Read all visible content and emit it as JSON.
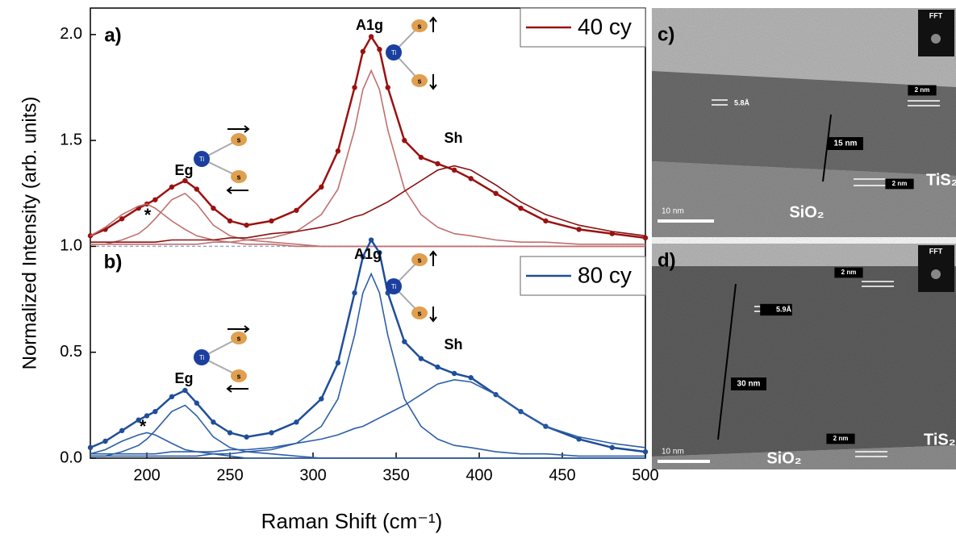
{
  "chart_data": {
    "type": "line",
    "x_label": "Raman Shift (cm⁻¹)",
    "y_label": "Normalized Intensity (arb. units)",
    "xlim": [
      166,
      500
    ],
    "xticks": [
      200,
      250,
      300,
      350,
      400,
      450,
      500
    ],
    "ylim": [
      0,
      2.125
    ],
    "yticks": [
      {
        "value": 0,
        "label": "0.0"
      },
      0.5,
      {
        "value": 1,
        "label": "1.0"
      },
      1.5,
      {
        "value": 2,
        "label": "2.0"
      }
    ],
    "baseline": 1,
    "x": [
      166,
      175,
      185,
      195,
      200,
      205,
      215,
      223,
      230,
      240,
      250,
      260,
      275,
      290,
      305,
      315,
      325,
      330,
      335,
      340,
      345,
      355,
      365,
      375,
      385,
      395,
      410,
      425,
      440,
      460,
      480,
      500
    ],
    "series": [
      {
        "style": "dots",
        "color": "#9b1111",
        "values": [
          1.05,
          1.08,
          1.13,
          1.18,
          1.2,
          1.22,
          1.28,
          1.31,
          1.27,
          1.18,
          1.12,
          1.1,
          1.12,
          1.17,
          1.28,
          1.45,
          1.75,
          1.92,
          1.99,
          1.93,
          1.75,
          1.5,
          1.42,
          1.39,
          1.36,
          1.32,
          1.25,
          1.18,
          1.12,
          1.08,
          1.06,
          1.04
        ]
      },
      {
        "name": "40 cy",
        "style": "line",
        "color": "#9b1111",
        "values": [
          1.05,
          1.08,
          1.13,
          1.18,
          1.2,
          1.22,
          1.28,
          1.31,
          1.27,
          1.18,
          1.12,
          1.1,
          1.12,
          1.17,
          1.28,
          1.45,
          1.75,
          1.92,
          1.99,
          1.93,
          1.75,
          1.5,
          1.42,
          1.39,
          1.36,
          1.32,
          1.25,
          1.18,
          1.12,
          1.08,
          1.06,
          1.04
        ]
      },
      {
        "style": "thin",
        "color": "#c07070",
        "values": [
          1.05,
          1.09,
          1.15,
          1.19,
          1.2,
          1.18,
          1.12,
          1.08,
          1.05,
          1.03,
          1.02,
          1.01,
          1.01,
          1,
          1,
          1,
          1,
          1,
          1,
          1,
          1,
          1,
          1,
          1,
          1,
          1,
          1,
          1,
          1,
          1,
          1,
          1
        ]
      },
      {
        "style": "thin",
        "color": "#c07070",
        "values": [
          1.01,
          1.01,
          1.03,
          1.06,
          1.09,
          1.13,
          1.22,
          1.25,
          1.2,
          1.1,
          1.05,
          1.03,
          1.02,
          1.01,
          1,
          1,
          1,
          1,
          1,
          1,
          1,
          1,
          1,
          1,
          1,
          1,
          1,
          1,
          1,
          1,
          1,
          1
        ]
      },
      {
        "style": "thin",
        "color": "#c07070",
        "values": [
          1.01,
          1.01,
          1.01,
          1.01,
          1.01,
          1.01,
          1.01,
          1.01,
          1.01,
          1.02,
          1.02,
          1.03,
          1.04,
          1.07,
          1.15,
          1.27,
          1.55,
          1.74,
          1.83,
          1.74,
          1.55,
          1.27,
          1.15,
          1.09,
          1.06,
          1.05,
          1.03,
          1.02,
          1.02,
          1.01,
          1.01,
          1.01
        ]
      },
      {
        "style": "thin",
        "color": "#8a1010",
        "values": [
          1.02,
          1.02,
          1.02,
          1.02,
          1.02,
          1.02,
          1.03,
          1.03,
          1.03,
          1.03,
          1.04,
          1.04,
          1.06,
          1.07,
          1.09,
          1.11,
          1.14,
          1.15,
          1.17,
          1.19,
          1.21,
          1.26,
          1.31,
          1.36,
          1.38,
          1.36,
          1.29,
          1.21,
          1.15,
          1.1,
          1.07,
          1.05
        ]
      },
      {
        "style": "dots",
        "color": "#1f4e9a",
        "values": [
          0.05,
          0.08,
          0.13,
          0.18,
          0.2,
          0.22,
          0.29,
          0.32,
          0.26,
          0.17,
          0.12,
          0.1,
          0.12,
          0.17,
          0.28,
          0.45,
          0.78,
          0.95,
          1.03,
          0.97,
          0.78,
          0.55,
          0.47,
          0.43,
          0.4,
          0.38,
          0.3,
          0.22,
          0.15,
          0.09,
          0.05,
          0.03
        ]
      },
      {
        "name": "80 cy",
        "style": "line",
        "color": "#1f4e9a",
        "values": [
          0.05,
          0.08,
          0.13,
          0.18,
          0.2,
          0.22,
          0.29,
          0.32,
          0.26,
          0.17,
          0.12,
          0.1,
          0.12,
          0.17,
          0.28,
          0.45,
          0.78,
          0.95,
          1.03,
          0.97,
          0.78,
          0.55,
          0.47,
          0.43,
          0.4,
          0.38,
          0.3,
          0.22,
          0.15,
          0.09,
          0.05,
          0.03
        ]
      },
      {
        "style": "thin",
        "color": "#2e5fa8",
        "values": [
          0.02,
          0.04,
          0.08,
          0.11,
          0.12,
          0.11,
          0.07,
          0.04,
          0.03,
          0.02,
          0.01,
          0,
          0,
          0,
          0,
          0,
          0,
          0,
          0,
          0,
          0,
          0,
          0,
          0,
          0,
          0,
          0,
          0,
          0,
          0,
          0,
          0
        ]
      },
      {
        "style": "thin",
        "color": "#2e5fa8",
        "values": [
          0.01,
          0.01,
          0.03,
          0.06,
          0.09,
          0.13,
          0.22,
          0.25,
          0.2,
          0.1,
          0.05,
          0.03,
          0.02,
          0.01,
          0,
          0,
          0,
          0,
          0,
          0,
          0,
          0,
          0,
          0,
          0,
          0,
          0,
          0,
          0,
          0,
          0,
          0
        ]
      },
      {
        "style": "thin",
        "color": "#2e5fa8",
        "values": [
          0.01,
          0.01,
          0.01,
          0.01,
          0.01,
          0.01,
          0.01,
          0.01,
          0.01,
          0.02,
          0.02,
          0.03,
          0.04,
          0.07,
          0.15,
          0.28,
          0.58,
          0.78,
          0.87,
          0.78,
          0.58,
          0.28,
          0.15,
          0.09,
          0.06,
          0.05,
          0.03,
          0.02,
          0.02,
          0.01,
          0.01,
          0.01
        ]
      },
      {
        "style": "thin",
        "color": "#2e5fa8",
        "values": [
          0.02,
          0.02,
          0.02,
          0.02,
          0.02,
          0.02,
          0.03,
          0.03,
          0.03,
          0.03,
          0.04,
          0.04,
          0.05,
          0.07,
          0.09,
          0.11,
          0.14,
          0.15,
          0.17,
          0.19,
          0.21,
          0.25,
          0.3,
          0.35,
          0.37,
          0.36,
          0.3,
          0.22,
          0.15,
          0.1,
          0.07,
          0.05
        ]
      }
    ],
    "annotations": [
      "a)",
      "b)",
      "A1g",
      "Eg",
      "Sh",
      "*",
      "A1g",
      "Eg",
      "Sh",
      "*"
    ],
    "icon_labels": [
      "Ti",
      "s"
    ]
  },
  "images": [
    {
      "texts": [
        "c)",
        "FFT",
        "5.8Å",
        "15 nm",
        "2 nm",
        "2 nm",
        "TiS₂",
        "SiO₂",
        "10 nm"
      ]
    },
    {
      "texts": [
        "d)",
        "FFT",
        "2 nm",
        "5.9Å",
        "30 nm",
        "2 nm",
        "TiS₂",
        "SiO₂",
        "10 nm"
      ]
    }
  ]
}
